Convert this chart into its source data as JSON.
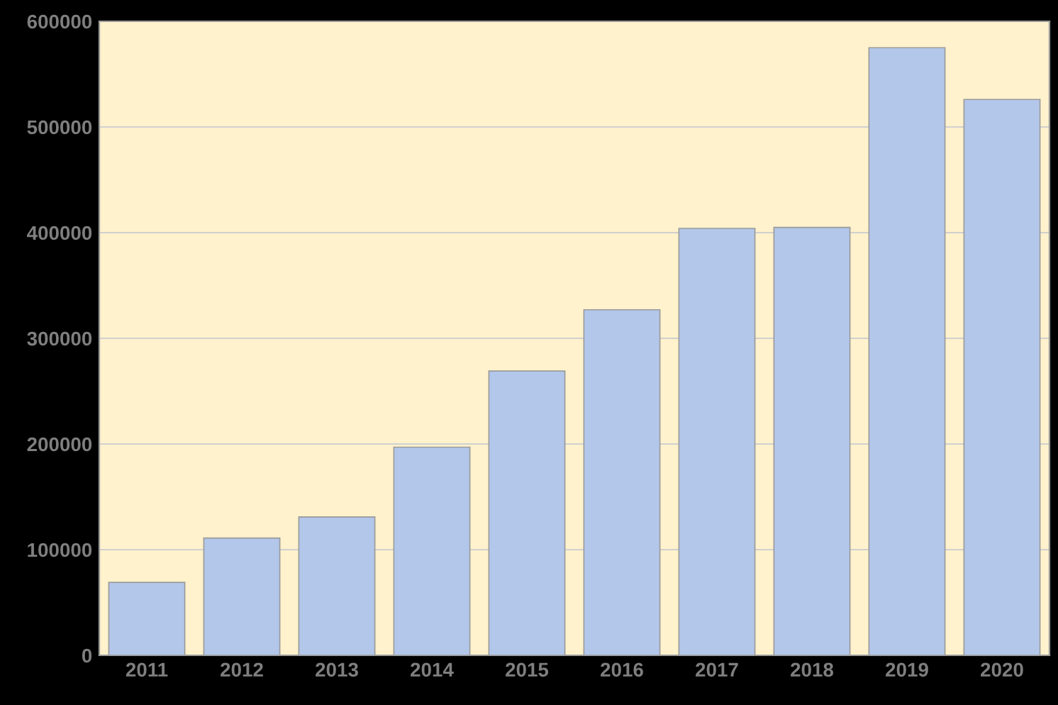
{
  "chart_data": {
    "type": "bar",
    "categories": [
      "2011",
      "2012",
      "2013",
      "2014",
      "2015",
      "2016",
      "2017",
      "2018",
      "2019",
      "2020"
    ],
    "values": [
      69000,
      111000,
      131000,
      197000,
      269000,
      327000,
      404000,
      405000,
      575000,
      526000
    ],
    "color": "#b3c7ea",
    "ylim": [
      0,
      600000
    ],
    "yticks": [
      0,
      100000,
      200000,
      300000,
      400000,
      500000,
      600000
    ],
    "grid": "y",
    "legend": false
  }
}
